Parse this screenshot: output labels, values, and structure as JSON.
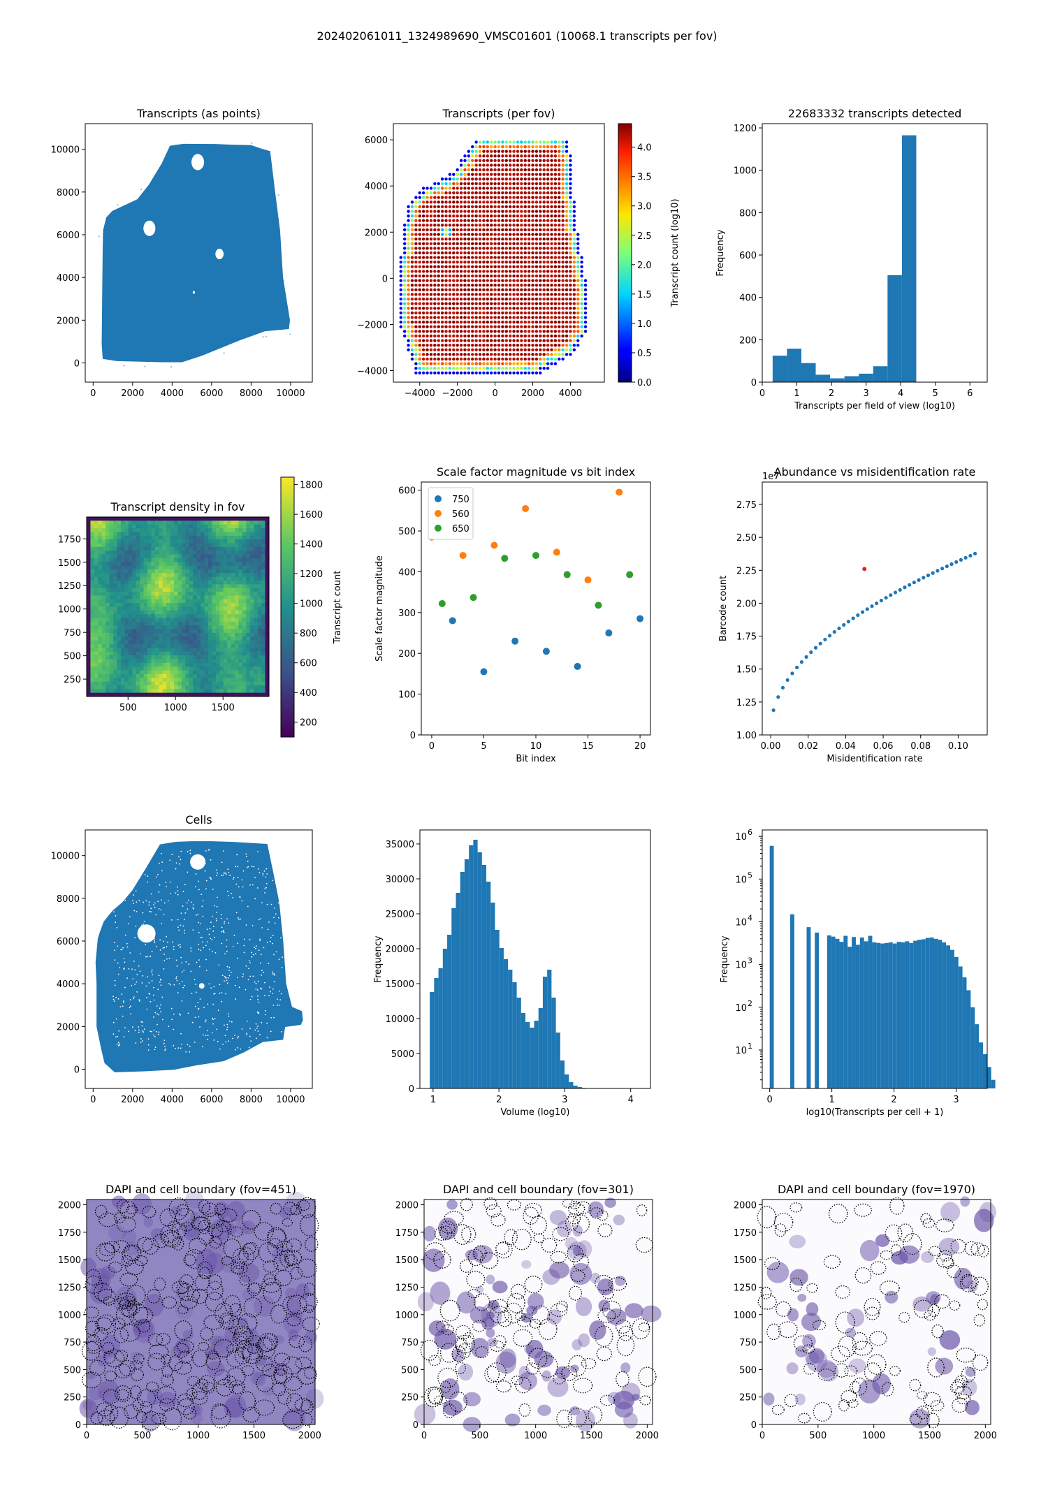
{
  "figure_title": "202402061011_1324989690_VMSC01601 (10068.1 transcripts per fov)",
  "colors": {
    "blue": "#1f77b4",
    "orange": "#ff7f0e",
    "green": "#2ca02c",
    "red": "#d62728",
    "dapi": "#6b4aa0"
  },
  "chart_data": [
    {
      "id": "p1",
      "type": "scatter",
      "title": "Transcripts (as points)",
      "xlabel": "",
      "ylabel": "",
      "xlim": [
        -400,
        11100
      ],
      "ylim": [
        -900,
        11200
      ],
      "xticks": [
        0,
        2000,
        4000,
        6000,
        8000,
        10000
      ],
      "yticks": [
        0,
        2000,
        4000,
        6000,
        8000,
        10000
      ],
      "polygon": [
        [
          3900,
          10150
        ],
        [
          4100,
          10180
        ],
        [
          4600,
          10240
        ],
        [
          6200,
          10230
        ],
        [
          7000,
          10200
        ],
        [
          8000,
          10180
        ],
        [
          8500,
          10020
        ],
        [
          8950,
          9900
        ],
        [
          9200,
          8000
        ],
        [
          9450,
          6200
        ],
        [
          9600,
          4000
        ],
        [
          9950,
          2000
        ],
        [
          9900,
          1600
        ],
        [
          8700,
          1500
        ],
        [
          7500,
          1100
        ],
        [
          5500,
          350
        ],
        [
          4500,
          50
        ],
        [
          3500,
          50
        ],
        [
          1200,
          100
        ],
        [
          500,
          200
        ],
        [
          450,
          900
        ],
        [
          500,
          5200
        ],
        [
          520,
          6200
        ],
        [
          680,
          6800
        ],
        [
          980,
          7100
        ],
        [
          2250,
          7650
        ],
        [
          2850,
          8350
        ],
        [
          3500,
          9350
        ],
        [
          3900,
          10150
        ]
      ]
    },
    {
      "id": "p2",
      "type": "scatter",
      "title": "Transcripts (per fov)",
      "xlabel": "",
      "ylabel": "",
      "colorbar_label": "Transcript count (log10)",
      "clim": [
        0,
        4.4
      ],
      "xlim": [
        -5400,
        5800
      ],
      "ylim": [
        -4500,
        6700
      ],
      "xticks": [
        -4000,
        -2000,
        0,
        2000,
        4000
      ],
      "xticklabels": [
        "−4000",
        "−2000",
        "0",
        "2000",
        "4000"
      ],
      "yticks": [
        -4000,
        -2000,
        0,
        2000,
        4000,
        6000
      ],
      "yticklabels": [
        "−4000",
        "−2000",
        "0",
        "2000",
        "4000",
        "6000"
      ],
      "cbar_ticks": [
        0,
        0.5,
        1,
        1.5,
        2,
        2.5,
        3,
        3.5,
        4
      ],
      "cbar_ticklabels": [
        "0.0",
        "0.5",
        "1.0",
        "1.5",
        "2.0",
        "2.5",
        "3.0",
        "3.5",
        "4.0"
      ]
    },
    {
      "id": "p3",
      "type": "bar",
      "title": "22683332 transcripts detected",
      "xlabel": "Transcripts per field of view (log10)",
      "ylabel": "Frequency",
      "xlim": [
        0,
        6.5
      ],
      "ylim": [
        0,
        1220
      ],
      "xticks": [
        0,
        1,
        2,
        3,
        4,
        5,
        6
      ],
      "yticks": [
        0,
        200,
        400,
        600,
        800,
        1000,
        1200
      ],
      "bin_start": 0.3,
      "bin_width": 0.415,
      "values": [
        125,
        158,
        90,
        35,
        18,
        28,
        40,
        75,
        505,
        1165
      ]
    },
    {
      "id": "p4",
      "type": "heatmap",
      "title": "Transcript density in fov",
      "xlabel": "",
      "ylabel": "",
      "colorbar_label": "Transcript count",
      "xlim": [
        64,
        1984
      ],
      "ylim": [
        64,
        1984
      ],
      "clim": [
        100,
        1850
      ],
      "xticks": [
        500,
        1000,
        1500
      ],
      "yticks": [
        250,
        500,
        750,
        1000,
        1250,
        1500,
        1750
      ],
      "cbar_ticks": [
        200,
        400,
        600,
        800,
        1000,
        1200,
        1400,
        1600,
        1800
      ]
    },
    {
      "id": "p5",
      "type": "scatter",
      "title": "Scale factor magnitude vs bit index",
      "xlabel": "Bit index",
      "ylabel": "Scale factor magnitude",
      "xlim": [
        -1,
        21
      ],
      "ylim": [
        0,
        620
      ],
      "xticks": [
        0,
        5,
        10,
        15,
        20
      ],
      "yticks": [
        0,
        100,
        200,
        300,
        400,
        500,
        600
      ],
      "series": [
        {
          "name": "750",
          "color": "#1f77b4",
          "x": [
            2,
            5,
            8,
            11,
            14,
            17,
            20
          ],
          "y": [
            280,
            155,
            230,
            205,
            168,
            250,
            285
          ]
        },
        {
          "name": "560",
          "color": "#ff7f0e",
          "x": [
            0,
            3,
            6,
            9,
            12,
            15,
            18
          ],
          "y": [
            485,
            440,
            465,
            555,
            448,
            380,
            595
          ]
        },
        {
          "name": "650",
          "color": "#2ca02c",
          "x": [
            1,
            4,
            7,
            10,
            13,
            16,
            19
          ],
          "y": [
            322,
            337,
            433,
            440,
            393,
            318,
            393
          ]
        }
      ]
    },
    {
      "id": "p6",
      "type": "scatter",
      "title": "Abundance vs misidentification rate",
      "xlabel": "Misidentification rate",
      "ylabel": "Barcode count",
      "offset_text": "1e7",
      "xlim": [
        -0.0045,
        0.1155
      ],
      "ylim": [
        1.0,
        2.92
      ],
      "xticks": [
        0,
        0.02,
        0.04,
        0.06,
        0.08,
        0.1
      ],
      "xticklabels": [
        "0.00",
        "0.02",
        "0.04",
        "0.06",
        "0.08",
        "0.10"
      ],
      "yticks": [
        1,
        1.25,
        1.5,
        1.75,
        2,
        2.25,
        2.5,
        2.75
      ],
      "yticklabels": [
        "1.00",
        "1.25",
        "1.50",
        "1.75",
        "2.00",
        "2.25",
        "2.50",
        "2.75"
      ],
      "highlight": [
        0.05,
        2.26
      ]
    },
    {
      "id": "p7",
      "type": "scatter",
      "title": "Cells",
      "xlabel": "",
      "ylabel": "",
      "xlim": [
        -400,
        11100
      ],
      "ylim": [
        -900,
        11200
      ],
      "xticks": [
        0,
        2000,
        4000,
        6000,
        8000,
        10000
      ],
      "yticks": [
        0,
        2000,
        4000,
        6000,
        8000,
        10000
      ],
      "polygon": [
        [
          3400,
          10500
        ],
        [
          4200,
          10620
        ],
        [
          5000,
          10650
        ],
        [
          6000,
          10650
        ],
        [
          7000,
          10620
        ],
        [
          8800,
          10520
        ],
        [
          9100,
          9200
        ],
        [
          9400,
          7800
        ],
        [
          9600,
          6000
        ],
        [
          9750,
          4000
        ],
        [
          10050,
          2900
        ],
        [
          10550,
          2700
        ],
        [
          10600,
          2300
        ],
        [
          10500,
          2100
        ],
        [
          9700,
          2000
        ],
        [
          9600,
          1400
        ],
        [
          8600,
          1300
        ],
        [
          7600,
          800
        ],
        [
          6600,
          400
        ],
        [
          5200,
          200
        ],
        [
          4100,
          0
        ],
        [
          2500,
          -80
        ],
        [
          1100,
          -120
        ],
        [
          600,
          300
        ],
        [
          420,
          1000
        ],
        [
          200,
          2000
        ],
        [
          200,
          4000
        ],
        [
          150,
          5000
        ],
        [
          260,
          6100
        ],
        [
          360,
          6400
        ],
        [
          560,
          6900
        ],
        [
          1000,
          7400
        ],
        [
          1500,
          7800
        ],
        [
          2000,
          8350
        ],
        [
          2700,
          9400
        ],
        [
          3400,
          10500
        ]
      ]
    },
    {
      "id": "p8",
      "type": "bar",
      "title": "",
      "xlabel": "Volume (log10)",
      "ylabel": "Frequency",
      "xlim": [
        0.8,
        4.3
      ],
      "ylim": [
        0,
        37000
      ],
      "xticks": [
        1,
        2,
        3,
        4
      ],
      "yticks": [
        0,
        5000,
        10000,
        15000,
        20000,
        25000,
        30000,
        35000
      ],
      "bin_start": 0.95,
      "bin_width": 0.066,
      "values": [
        13800,
        15800,
        17200,
        20000,
        22000,
        25800,
        28000,
        31000,
        32800,
        34800,
        35600,
        33800,
        32000,
        29600,
        26600,
        22700,
        20100,
        18500,
        17000,
        15200,
        13000,
        10800,
        9500,
        8700,
        9700,
        11500,
        16000,
        17000,
        13000,
        8000,
        4000,
        2000,
        900,
        400,
        200,
        80,
        30,
        10
      ]
    },
    {
      "id": "p9",
      "type": "bar",
      "title": "",
      "xlabel": "log10(Transcripts per cell + 1)",
      "ylabel": "Frequency",
      "yscale": "log",
      "xlim": [
        -0.12,
        3.5
      ],
      "log_ylim": [
        0.1,
        6.15
      ],
      "xticks": [
        0,
        1,
        2,
        3
      ],
      "log_yticks": [
        1,
        2,
        3,
        4,
        5,
        6
      ],
      "bin_start": 0,
      "bin_width": 0.066,
      "values": [
        600000,
        0,
        0,
        0,
        0,
        15000,
        0,
        0,
        0,
        7500,
        0,
        5600,
        0,
        0,
        4800,
        4500,
        4000,
        3400,
        4700,
        2600,
        4400,
        2900,
        4300,
        3500,
        4700,
        3300,
        3200,
        3100,
        3200,
        3300,
        3100,
        3400,
        3300,
        3500,
        3200,
        3600,
        3800,
        3900,
        4200,
        4300,
        4000,
        3800,
        3300,
        2800,
        2200,
        1500,
        900,
        500,
        250,
        100,
        40,
        15,
        8,
        4,
        2
      ]
    },
    {
      "id": "p10",
      "type": "image",
      "title": "DAPI and cell boundary (fov=451)",
      "xlim": [
        0,
        2048
      ],
      "ylim": [
        0,
        2048
      ],
      "xticks": [
        0,
        500,
        1000,
        1500,
        2000
      ],
      "yticks": [
        0,
        250,
        500,
        750,
        1000,
        1250,
        1500,
        1750,
        2000
      ]
    },
    {
      "id": "p11",
      "type": "image",
      "title": "DAPI and cell boundary (fov=301)",
      "xlim": [
        0,
        2048
      ],
      "ylim": [
        0,
        2048
      ],
      "xticks": [
        0,
        500,
        1000,
        1500,
        2000
      ],
      "yticks": [
        0,
        250,
        500,
        750,
        1000,
        1250,
        1500,
        1750,
        2000
      ]
    },
    {
      "id": "p12",
      "type": "image",
      "title": "DAPI and cell boundary (fov=1970)",
      "xlim": [
        0,
        2048
      ],
      "ylim": [
        0,
        2048
      ],
      "xticks": [
        0,
        500,
        1000,
        1500,
        2000
      ],
      "yticks": [
        0,
        250,
        500,
        750,
        1000,
        1250,
        1500,
        1750,
        2000
      ]
    }
  ]
}
